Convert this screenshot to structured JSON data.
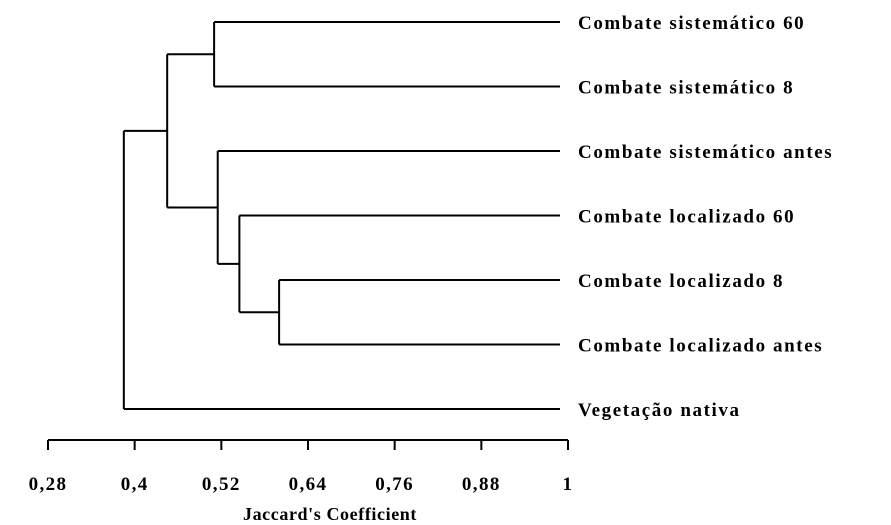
{
  "chart_data": {
    "type": "dendrogram",
    "xlabel": "Jaccard's Coefficient",
    "xlim": [
      0.28,
      1.0
    ],
    "ticks": [
      "0,28",
      "0,4",
      "0,52",
      "0,64",
      "0,76",
      "0,88",
      "1"
    ],
    "tick_values": [
      0.28,
      0.4,
      0.52,
      0.64,
      0.76,
      0.88,
      1.0
    ],
    "leaves": [
      "Combate sistemático 60",
      "Combate sistemático 8",
      "Combate sistemático antes",
      "Combate localizado 60",
      "Combate localizado 8",
      "Combate localizado antes",
      "Vegetação nativa"
    ],
    "merges": [
      {
        "members": [
          0,
          1
        ],
        "similarity": 0.51
      },
      {
        "members": [
          4,
          5
        ],
        "similarity": 0.6
      },
      {
        "members": [
          3,
          "m2"
        ],
        "similarity": 0.545
      },
      {
        "members": [
          2,
          "m3"
        ],
        "similarity": 0.515
      },
      {
        "members": [
          "m1",
          "m4"
        ],
        "similarity": 0.445
      },
      {
        "members": [
          "m5",
          6
        ],
        "similarity": 0.385
      }
    ]
  }
}
